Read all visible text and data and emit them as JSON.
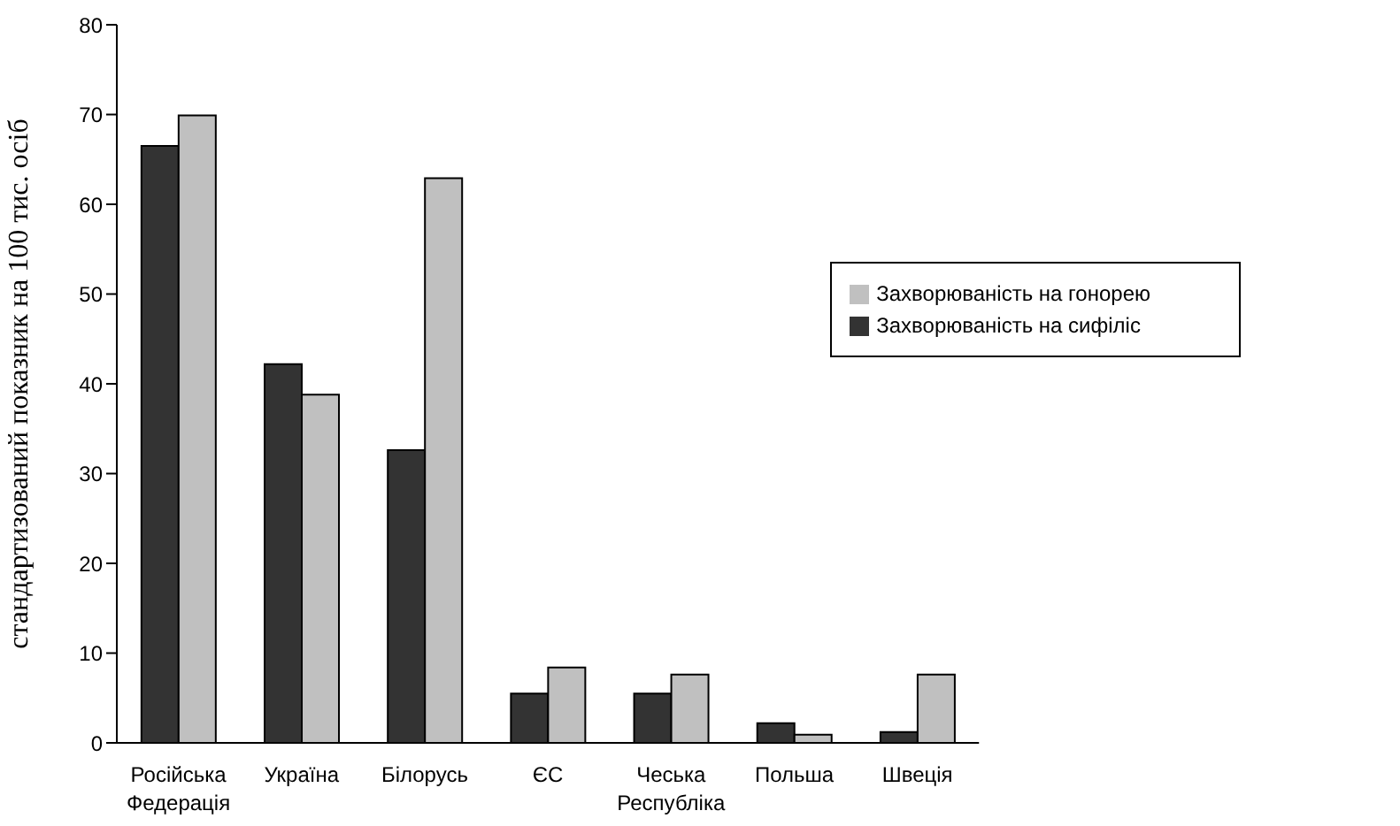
{
  "chart_data": {
    "type": "bar",
    "ylabel": "стандартизований показник на 100 тис. осіб",
    "categories": [
      "Російська Федерація",
      "Україна",
      "Білорусь",
      "ЄС",
      "Чеська Республіка",
      "Польша",
      "Швеція"
    ],
    "series": [
      {
        "name": "Захворюваність на сифіліс",
        "color": "#333333",
        "values": [
          66.5,
          42.2,
          32.6,
          5.5,
          5.5,
          2.2,
          1.2
        ]
      },
      {
        "name": "Захворюваність на гонорею",
        "color": "#c0c0c0",
        "values": [
          69.9,
          38.8,
          62.9,
          8.4,
          7.6,
          0.9,
          7.6
        ]
      }
    ],
    "ylim": [
      0,
      80
    ],
    "yticks": [
      0,
      10,
      20,
      30,
      40,
      50,
      60,
      70,
      80
    ],
    "grid": false,
    "legend": "right"
  }
}
